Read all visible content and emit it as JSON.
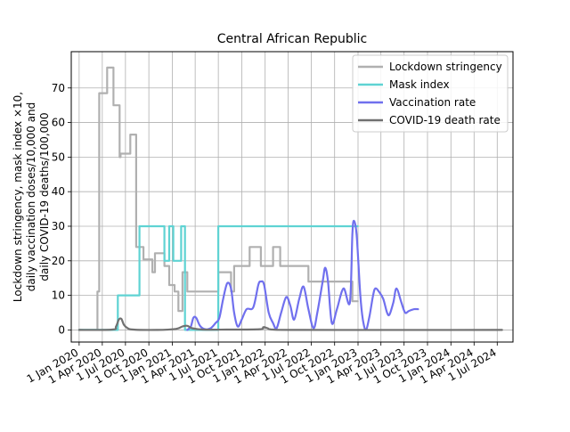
{
  "chart_data": {
    "type": "line",
    "title": "Central African Republic",
    "ylabel_lines": [
      "Lockdown stringency, mask index ×10,",
      "daily vaccination doses/10,000 and",
      "daily COVID-19 deaths/100,000"
    ],
    "xlabel": "",
    "grid": true,
    "legend_position": "top-right",
    "x_axis": {
      "type": "date",
      "range": [
        "2019-12-01",
        "2024-09-01"
      ],
      "ticks": [
        "2020-01-01",
        "2020-04-01",
        "2020-07-01",
        "2020-10-01",
        "2021-01-01",
        "2021-04-01",
        "2021-07-01",
        "2021-10-01",
        "2022-01-01",
        "2022-04-01",
        "2022-07-01",
        "2022-10-01",
        "2023-01-01",
        "2023-04-01",
        "2023-07-01",
        "2023-10-01",
        "2024-01-01",
        "2024-04-01",
        "2024-07-01"
      ],
      "tick_labels": [
        "1 Jan 2020",
        "1 Apr 2020",
        "1 Jul 2020",
        "1 Oct 2020",
        "1 Jan 2021",
        "1 Apr 2021",
        "1 Jul 2021",
        "1 Oct 2021",
        "1 Jan 2022",
        "1 Apr 2022",
        "1 Jul 2022",
        "1 Oct 2022",
        "1 Jan 2023",
        "1 Apr 2023",
        "1 Jul 2023",
        "1 Oct 2023",
        "1 Jan 2024",
        "1 Apr 2024",
        "1 Jul 2024"
      ]
    },
    "y_axis": {
      "range": [
        -3.5,
        80.5
      ],
      "ticks": [
        0,
        10,
        20,
        30,
        40,
        50,
        60,
        70
      ],
      "tick_labels": [
        "0",
        "10",
        "20",
        "30",
        "40",
        "50",
        "60",
        "70"
      ]
    },
    "series": [
      {
        "name": "Lockdown stringency",
        "color": "#b0b0b0",
        "step": true,
        "points": [
          [
            "2020-01-01",
            0
          ],
          [
            "2020-03-13",
            11.1
          ],
          [
            "2020-03-20",
            68.5
          ],
          [
            "2020-04-20",
            75.9
          ],
          [
            "2020-05-15",
            65
          ],
          [
            "2020-06-08",
            50
          ],
          [
            "2020-06-12",
            51
          ],
          [
            "2020-07-20",
            56.5
          ],
          [
            "2020-08-12",
            24
          ],
          [
            "2020-09-10",
            20.4
          ],
          [
            "2020-10-15",
            16.7
          ],
          [
            "2020-10-25",
            22.2
          ],
          [
            "2020-12-01",
            18.5
          ],
          [
            "2020-12-20",
            13
          ],
          [
            "2021-01-10",
            11.1
          ],
          [
            "2021-01-25",
            5.5
          ],
          [
            "2021-02-10",
            16.7
          ],
          [
            "2021-03-01",
            11.1
          ],
          [
            "2021-07-01",
            16.7
          ],
          [
            "2021-08-20",
            11.1
          ],
          [
            "2021-09-01",
            18.5
          ],
          [
            "2021-11-01",
            24
          ],
          [
            "2021-12-15",
            18.5
          ],
          [
            "2022-02-01",
            24
          ],
          [
            "2022-03-01",
            18.5
          ],
          [
            "2022-06-20",
            14
          ],
          [
            "2022-12-10",
            8.3
          ],
          [
            "2022-12-31",
            8.3
          ]
        ]
      },
      {
        "name": "Mask index",
        "color": "#5fd3d3",
        "step": true,
        "points": [
          [
            "2020-01-01",
            0
          ],
          [
            "2020-04-10",
            0
          ],
          [
            "2020-06-01",
            10
          ],
          [
            "2020-08-25",
            30
          ],
          [
            "2020-12-01",
            20
          ],
          [
            "2020-12-20",
            30
          ],
          [
            "2021-01-05",
            20
          ],
          [
            "2021-02-05",
            30
          ],
          [
            "2021-02-20",
            0
          ],
          [
            "2021-06-20",
            0
          ],
          [
            "2021-07-01",
            30
          ],
          [
            "2022-12-31",
            30
          ]
        ]
      },
      {
        "name": "Vaccination rate",
        "color": "#7070ee",
        "step": false,
        "points": [
          [
            "2021-03-01",
            0
          ],
          [
            "2021-03-15",
            1
          ],
          [
            "2021-03-25",
            3.5
          ],
          [
            "2021-04-05",
            3.5
          ],
          [
            "2021-04-20",
            1.2
          ],
          [
            "2021-05-10",
            0.2
          ],
          [
            "2021-06-01",
            0.5
          ],
          [
            "2021-06-20",
            2
          ],
          [
            "2021-07-05",
            3.5
          ],
          [
            "2021-07-20",
            9
          ],
          [
            "2021-08-05",
            13.5
          ],
          [
            "2021-08-20",
            12
          ],
          [
            "2021-09-01",
            5
          ],
          [
            "2021-09-15",
            1
          ],
          [
            "2021-10-01",
            3
          ],
          [
            "2021-10-20",
            6
          ],
          [
            "2021-11-15",
            6.5
          ],
          [
            "2021-12-05",
            13
          ],
          [
            "2021-12-15",
            14
          ],
          [
            "2021-12-28",
            13
          ],
          [
            "2022-01-15",
            5
          ],
          [
            "2022-02-01",
            2
          ],
          [
            "2022-02-15",
            0.5
          ],
          [
            "2022-03-05",
            5
          ],
          [
            "2022-03-25",
            9.5
          ],
          [
            "2022-04-10",
            7
          ],
          [
            "2022-04-25",
            3
          ],
          [
            "2022-05-15",
            9
          ],
          [
            "2022-06-01",
            12.5
          ],
          [
            "2022-06-20",
            6
          ],
          [
            "2022-07-10",
            0.5
          ],
          [
            "2022-07-25",
            5
          ],
          [
            "2022-08-15",
            14
          ],
          [
            "2022-08-25",
            18
          ],
          [
            "2022-09-05",
            14
          ],
          [
            "2022-09-20",
            2
          ],
          [
            "2022-10-10",
            6
          ],
          [
            "2022-11-05",
            12
          ],
          [
            "2022-11-30",
            8
          ],
          [
            "2022-12-10",
            28
          ],
          [
            "2022-12-17",
            31.5
          ],
          [
            "2022-12-27",
            27
          ],
          [
            "2023-01-10",
            10
          ],
          [
            "2023-01-20",
            3
          ],
          [
            "2023-02-01",
            0
          ],
          [
            "2023-02-15",
            4
          ],
          [
            "2023-03-01",
            10
          ],
          [
            "2023-03-10",
            12
          ],
          [
            "2023-03-25",
            11
          ],
          [
            "2023-04-10",
            9
          ],
          [
            "2023-04-25",
            5
          ],
          [
            "2023-05-05",
            4.5
          ],
          [
            "2023-05-20",
            8
          ],
          [
            "2023-06-01",
            12
          ],
          [
            "2023-06-20",
            8
          ],
          [
            "2023-07-05",
            5
          ],
          [
            "2023-07-20",
            5.5
          ],
          [
            "2023-08-10",
            6
          ],
          [
            "2023-08-25",
            6
          ]
        ]
      },
      {
        "name": "COVID-19 death rate",
        "color": "#707070",
        "step": false,
        "points": [
          [
            "2020-01-01",
            0
          ],
          [
            "2020-05-10",
            0.1
          ],
          [
            "2020-05-25",
            1
          ],
          [
            "2020-06-05",
            3
          ],
          [
            "2020-06-15",
            3.2
          ],
          [
            "2020-06-25",
            1.5
          ],
          [
            "2020-07-10",
            0.5
          ],
          [
            "2020-08-01",
            0.1
          ],
          [
            "2020-11-01",
            0
          ],
          [
            "2021-01-15",
            0.3
          ],
          [
            "2021-02-10",
            1
          ],
          [
            "2021-03-01",
            1.2
          ],
          [
            "2021-03-20",
            0.5
          ],
          [
            "2021-05-01",
            0.1
          ],
          [
            "2021-08-01",
            0.1
          ],
          [
            "2021-12-10",
            0.2
          ],
          [
            "2021-12-25",
            0.8
          ],
          [
            "2022-01-10",
            0.5
          ],
          [
            "2022-02-01",
            0.1
          ],
          [
            "2022-06-01",
            0
          ],
          [
            "2024-07-20",
            0
          ]
        ]
      }
    ]
  }
}
